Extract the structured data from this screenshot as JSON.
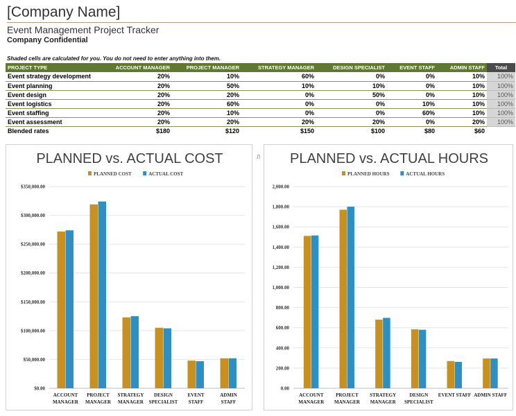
{
  "header": {
    "company": "[Company Name]",
    "title": "Event Management Project Tracker",
    "confidential": "Company Confidential",
    "note": "Shaded cells are calculated for you. You do not need to enter anything into them."
  },
  "table": {
    "columns": [
      "PROJECT TYPE",
      "ACCOUNT MANAGER",
      "PROJECT MANAGER",
      "STRATEGY MANAGER",
      "DESIGN SPECIALIST",
      "EVENT STAFF",
      "ADMIN STAFF",
      "Total"
    ],
    "rows": [
      [
        "Event strategy development",
        "20%",
        "10%",
        "60%",
        "0%",
        "0%",
        "10%",
        "100%"
      ],
      [
        "Event planning",
        "20%",
        "50%",
        "10%",
        "10%",
        "0%",
        "10%",
        "100%"
      ],
      [
        "Event design",
        "20%",
        "20%",
        "0%",
        "50%",
        "0%",
        "10%",
        "100%"
      ],
      [
        "Event logistics",
        "20%",
        "60%",
        "0%",
        "0%",
        "10%",
        "10%",
        "100%"
      ],
      [
        "Event staffing",
        "20%",
        "10%",
        "0%",
        "0%",
        "60%",
        "10%",
        "100%"
      ],
      [
        "Event assessment",
        "20%",
        "20%",
        "20%",
        "20%",
        "0%",
        "20%",
        "100%"
      ]
    ],
    "rates": [
      "Blended rates",
      "$180",
      "$120",
      "$150",
      "$100",
      "$80",
      "$60"
    ]
  },
  "stray_mark": "Л",
  "colors": {
    "planned": "#c8901e",
    "actual": "#2e8fc0",
    "header_green": "#5f7a2e",
    "gridline": "#e4e4e4"
  },
  "chart_data": [
    {
      "type": "bar",
      "title": "PLANNED vs. ACTUAL COST",
      "categories": [
        [
          "ACCOUNT",
          "MANAGER"
        ],
        [
          "PROJECT",
          "MANAGER"
        ],
        [
          "STRATEGY",
          "MANAGER"
        ],
        [
          "DESIGN",
          "SPECIALIST"
        ],
        [
          "EVENT",
          "STAFF"
        ],
        [
          "ADMIN",
          "STAFF"
        ]
      ],
      "series": [
        {
          "name": "PLANNED COST",
          "values": [
            272000,
            319000,
            123000,
            105000,
            48000,
            52000
          ]
        },
        {
          "name": "ACTUAL COST",
          "values": [
            274000,
            324000,
            125000,
            104000,
            47000,
            52000
          ]
        }
      ],
      "ylim": [
        0,
        350000
      ],
      "yticks": [
        "$0.00",
        "$50,000.00",
        "$100,000.00",
        "$150,000.00",
        "$200,000.00",
        "$250,000.00",
        "$300,000.00",
        "$350,000.00"
      ],
      "legend": "top",
      "grid": true
    },
    {
      "type": "bar",
      "title": "PLANNED vs. ACTUAL HOURS",
      "categories": [
        [
          "ACCOUNT",
          "MANAGER"
        ],
        [
          "PROJECT",
          "MANAGER"
        ],
        [
          "STRATEGY",
          "MANAGER"
        ],
        [
          "DESIGN",
          "SPECIALIST"
        ],
        [
          "EVENT STAFF"
        ],
        [
          "ADMIN STAFF"
        ]
      ],
      "series": [
        {
          "name": "PLANNED HOURS",
          "values": [
            1510,
            1770,
            680,
            585,
            270,
            295
          ]
        },
        {
          "name": "ACTUAL HOURS",
          "values": [
            1515,
            1800,
            698,
            580,
            262,
            295
          ]
        }
      ],
      "ylim": [
        0,
        2000
      ],
      "yticks": [
        "0.00",
        "200.00",
        "400.00",
        "600.00",
        "800.00",
        "1,000.00",
        "1,200.00",
        "1,400.00",
        "1,600.00",
        "1,800.00",
        "2,000.00"
      ],
      "legend": "top",
      "grid": true
    }
  ]
}
